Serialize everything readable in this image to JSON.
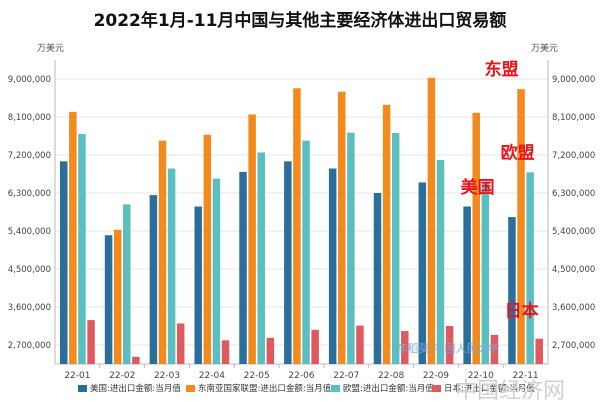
{
  "chart_data": {
    "type": "bar",
    "title": "2022年1月-11月中国与其他主要经济体进出口贸易额",
    "y_unit_left": "万美元",
    "y_unit_right": "万美元",
    "ylim": [
      2250000,
      9450000
    ],
    "yticks": [
      2700000,
      3600000,
      4500000,
      5400000,
      6300000,
      7200000,
      8100000,
      9000000
    ],
    "ytick_labels": [
      "2,700,000",
      "3,600,000",
      "4,500,000",
      "5,400,000",
      "6,300,000",
      "7,200,000",
      "8,100,000",
      "9,000,000"
    ],
    "grid": true,
    "legend_position": "bottom",
    "categories": [
      "22-01",
      "22-02",
      "22-03",
      "22-04",
      "22-05",
      "22-06",
      "22-07",
      "22-08",
      "22-09",
      "22-10",
      "22-11"
    ],
    "series": [
      {
        "name": "美国:进出口金额:当月值",
        "color": "#2a6e9c",
        "values": [
          7050000,
          5300000,
          6250000,
          5980000,
          6800000,
          7050000,
          6880000,
          6300000,
          6550000,
          5980000,
          5730000
        ]
      },
      {
        "name": "东南亚国家联盟:进出口金额:当月值",
        "color": "#f28a1e",
        "values": [
          8220000,
          5430000,
          7540000,
          7680000,
          8160000,
          8780000,
          8700000,
          8390000,
          9030000,
          8200000,
          8760000
        ]
      },
      {
        "name": "欧盟:进出口金额:当月值",
        "color": "#5cbfbf",
        "values": [
          7700000,
          6030000,
          6880000,
          6640000,
          7260000,
          7540000,
          7730000,
          7720000,
          7080000,
          6560000,
          6790000
        ]
      },
      {
        "name": "日本:进出口金额:当月值",
        "color": "#de5a5e",
        "values": [
          3290000,
          2420000,
          3210000,
          2810000,
          2870000,
          3060000,
          3160000,
          3030000,
          3150000,
          2940000,
          2850000
        ]
      }
    ],
    "annotations": [
      {
        "text": "东盟",
        "target_series": 1
      },
      {
        "text": "欧盟",
        "target_series": 2
      },
      {
        "text": "美国",
        "target_series": 0
      },
      {
        "text": "日本",
        "target_series": 3
      }
    ]
  },
  "watermark": "李稻葵-中国人民大学",
  "corner_watermark": "中国经济网"
}
